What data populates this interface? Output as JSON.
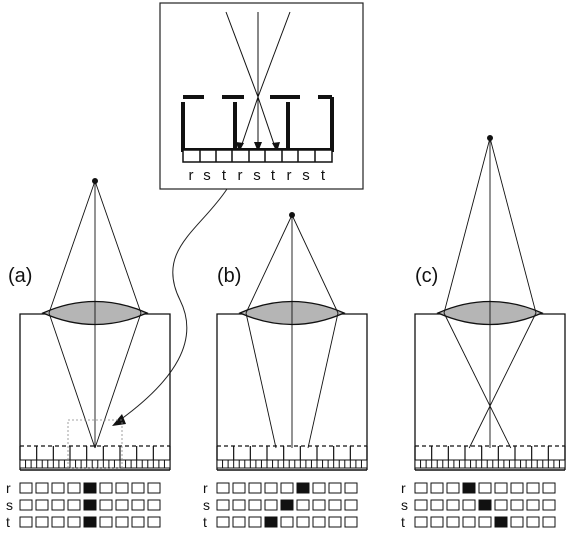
{
  "inset": {
    "subpixel_labels": [
      "r",
      "s",
      "t",
      "r",
      "s",
      "t",
      "r",
      "s",
      "t"
    ]
  },
  "panels": [
    {
      "label": "(a)",
      "active": {
        "r": 4,
        "s": 4,
        "t": 4
      }
    },
    {
      "label": "(b)",
      "active": {
        "r": 5,
        "s": 4,
        "t": 3
      }
    },
    {
      "label": "(c)",
      "active": {
        "r": 3,
        "s": 4,
        "t": 5
      }
    }
  ],
  "row_labels": [
    "r",
    "s",
    "t"
  ],
  "colors": {
    "ink": "#111111",
    "lens_fill": "#b5b5b5"
  }
}
